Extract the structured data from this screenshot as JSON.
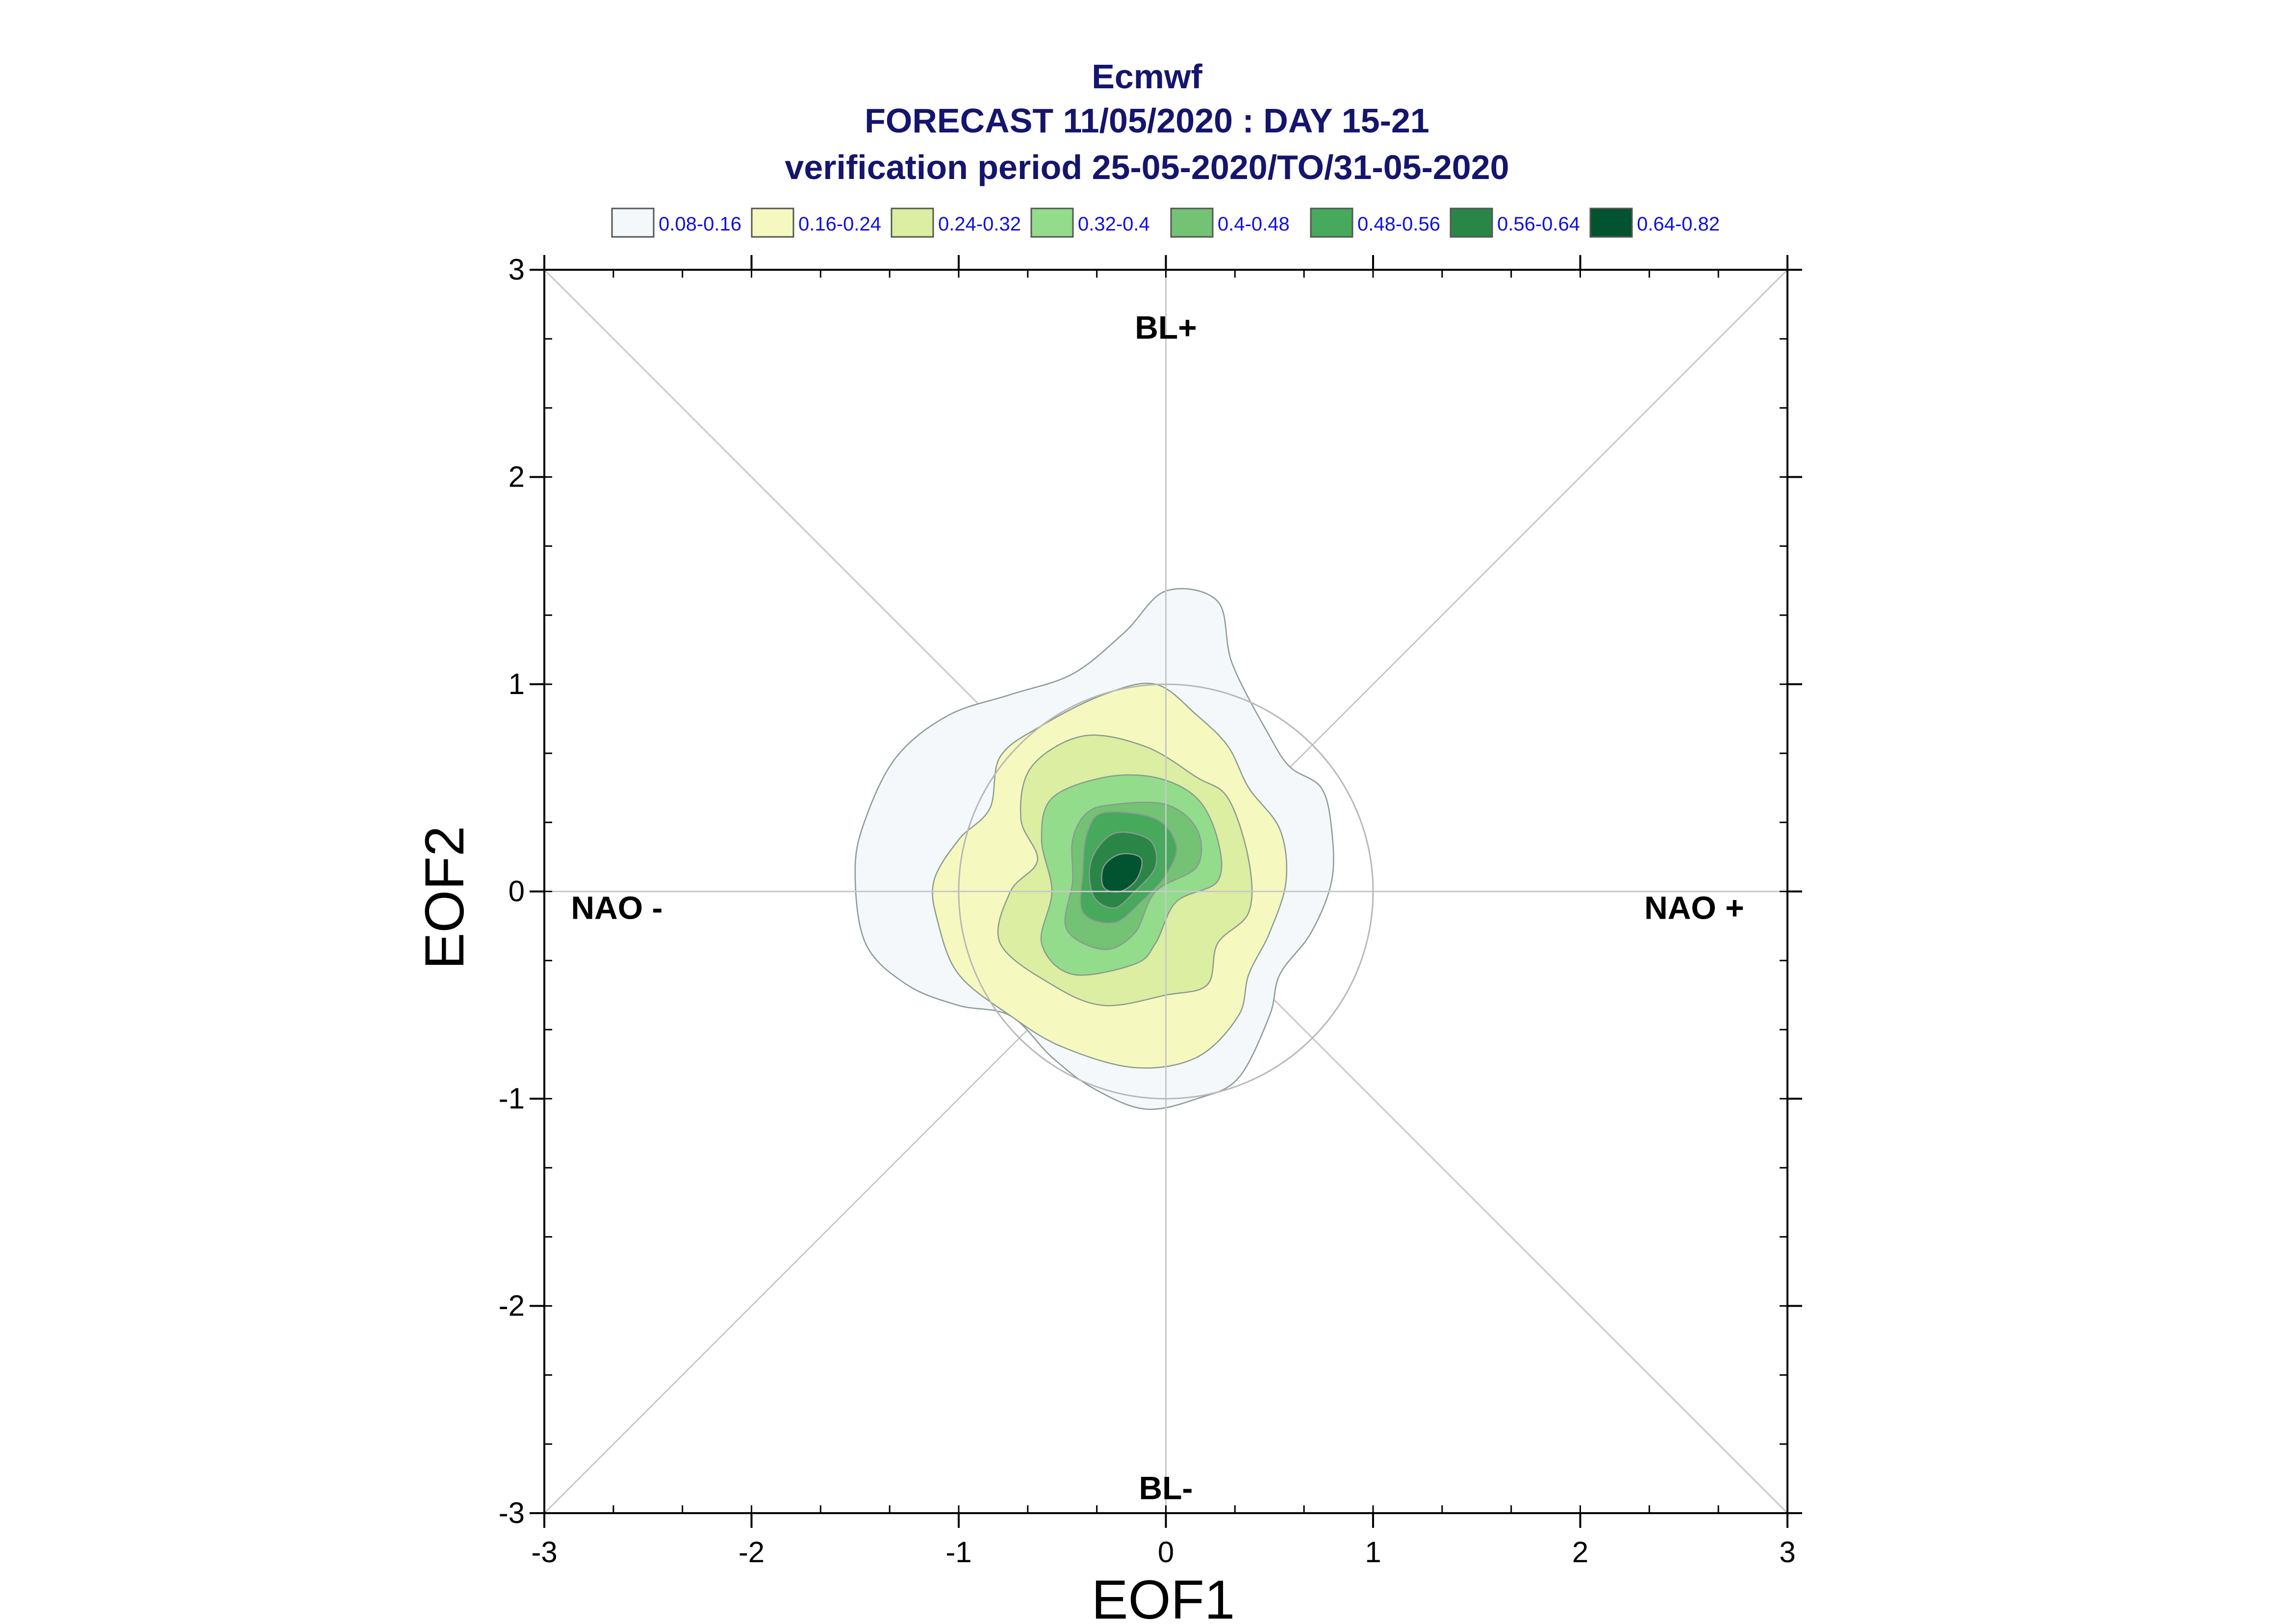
{
  "chart_data": {
    "type": "contour",
    "title_lines": [
      "Ecmwf",
      "FORECAST 11/05/2020 : DAY 15-21",
      "verification period 25-05-2020/TO/31-05-2020"
    ],
    "xlabel": "EOF1",
    "ylabel": "EOF2",
    "xlim": [
      -3,
      3
    ],
    "ylim": [
      -3,
      3
    ],
    "xticks": [
      "-3",
      "-2",
      "-1",
      "0",
      "1",
      "2",
      "3"
    ],
    "yticks": [
      "-3",
      "-2",
      "-1",
      "0",
      "1",
      "2",
      "3"
    ],
    "regimes": [
      {
        "label": "BL+",
        "x": 0,
        "y": 2.72
      },
      {
        "label": "BL-",
        "x": 0,
        "y": -2.88
      },
      {
        "label": "NAO -",
        "x": -2.65,
        "y": -0.08
      },
      {
        "label": "NAO +",
        "x": 2.55,
        "y": -0.08
      }
    ],
    "reference_circle": {
      "center": [
        0,
        0
      ],
      "radius": 1.0
    },
    "legend": [
      {
        "label": "0.08-0.16",
        "color": "#f4f8fb"
      },
      {
        "label": "0.16-0.24",
        "color": "#f5f9bf"
      },
      {
        "label": "0.24-0.32",
        "color": "#dbeea2"
      },
      {
        "label": "0.32-0.4",
        "color": "#92dc8c"
      },
      {
        "label": "0.4-0.48",
        "color": "#74c274"
      },
      {
        "label": "0.48-0.56",
        "color": "#46a95c"
      },
      {
        "label": "0.56-0.64",
        "color": "#2a8646"
      },
      {
        "label": "0.64-0.82",
        "color": "#02532f"
      }
    ],
    "contours": [
      {
        "level": "0.08-0.16",
        "color": "#f4f8fb",
        "points": [
          [
            0.0,
            1.45
          ],
          [
            0.25,
            1.4
          ],
          [
            0.32,
            1.1
          ],
          [
            0.5,
            0.75
          ],
          [
            0.6,
            0.6
          ],
          [
            0.75,
            0.5
          ],
          [
            0.8,
            0.3
          ],
          [
            0.8,
            0.05
          ],
          [
            0.7,
            -0.2
          ],
          [
            0.55,
            -0.4
          ],
          [
            0.5,
            -0.6
          ],
          [
            0.35,
            -0.9
          ],
          [
            0.15,
            -1.0
          ],
          [
            -0.1,
            -1.05
          ],
          [
            -0.35,
            -0.95
          ],
          [
            -0.55,
            -0.8
          ],
          [
            -0.75,
            -0.6
          ],
          [
            -1.0,
            -0.55
          ],
          [
            -1.25,
            -0.45
          ],
          [
            -1.45,
            -0.25
          ],
          [
            -1.5,
            0.1
          ],
          [
            -1.45,
            0.35
          ],
          [
            -1.3,
            0.65
          ],
          [
            -1.05,
            0.85
          ],
          [
            -0.75,
            0.95
          ],
          [
            -0.45,
            1.05
          ],
          [
            -0.2,
            1.25
          ]
        ]
      },
      {
        "level": "0.16-0.24",
        "color": "#f5f9bf",
        "points": [
          [
            -0.05,
            1.0
          ],
          [
            0.15,
            0.85
          ],
          [
            0.3,
            0.7
          ],
          [
            0.4,
            0.5
          ],
          [
            0.55,
            0.3
          ],
          [
            0.58,
            0.05
          ],
          [
            0.5,
            -0.2
          ],
          [
            0.4,
            -0.4
          ],
          [
            0.35,
            -0.6
          ],
          [
            0.15,
            -0.8
          ],
          [
            -0.15,
            -0.85
          ],
          [
            -0.5,
            -0.75
          ],
          [
            -0.75,
            -0.6
          ],
          [
            -1.0,
            -0.4
          ],
          [
            -1.1,
            -0.15
          ],
          [
            -1.12,
            0.05
          ],
          [
            -1.0,
            0.25
          ],
          [
            -0.85,
            0.4
          ],
          [
            -0.8,
            0.65
          ],
          [
            -0.6,
            0.8
          ],
          [
            -0.3,
            0.95
          ]
        ]
      },
      {
        "level": "0.24-0.32",
        "color": "#dbeea2",
        "points": [
          [
            -0.4,
            0.75
          ],
          [
            -0.1,
            0.7
          ],
          [
            0.15,
            0.55
          ],
          [
            0.3,
            0.45
          ],
          [
            0.4,
            0.15
          ],
          [
            0.4,
            -0.1
          ],
          [
            0.25,
            -0.25
          ],
          [
            0.2,
            -0.45
          ],
          [
            0.0,
            -0.5
          ],
          [
            -0.3,
            -0.55
          ],
          [
            -0.55,
            -0.45
          ],
          [
            -0.8,
            -0.25
          ],
          [
            -0.75,
            0.0
          ],
          [
            -0.62,
            0.15
          ],
          [
            -0.7,
            0.35
          ],
          [
            -0.65,
            0.6
          ]
        ]
      },
      {
        "level": "0.32-0.4",
        "color": "#92dc8c",
        "points": [
          [
            -0.3,
            0.55
          ],
          [
            -0.05,
            0.55
          ],
          [
            0.15,
            0.45
          ],
          [
            0.25,
            0.25
          ],
          [
            0.25,
            0.05
          ],
          [
            0.05,
            -0.05
          ],
          [
            -0.05,
            -0.25
          ],
          [
            -0.15,
            -0.35
          ],
          [
            -0.45,
            -0.4
          ],
          [
            -0.6,
            -0.25
          ],
          [
            -0.55,
            0.0
          ],
          [
            -0.6,
            0.25
          ],
          [
            -0.55,
            0.45
          ]
        ]
      },
      {
        "level": "0.4-0.48",
        "color": "#74c274",
        "points": [
          [
            -0.25,
            0.42
          ],
          [
            0.0,
            0.42
          ],
          [
            0.15,
            0.3
          ],
          [
            0.15,
            0.12
          ],
          [
            -0.05,
            0.0
          ],
          [
            -0.15,
            -0.2
          ],
          [
            -0.3,
            -0.28
          ],
          [
            -0.48,
            -0.18
          ],
          [
            -0.45,
            0.05
          ],
          [
            -0.45,
            0.25
          ],
          [
            -0.38,
            0.38
          ]
        ]
      },
      {
        "level": "0.48-0.56",
        "color": "#46a95c",
        "points": [
          [
            -0.3,
            0.38
          ],
          [
            -0.05,
            0.35
          ],
          [
            0.05,
            0.22
          ],
          [
            0.0,
            0.08
          ],
          [
            -0.12,
            -0.05
          ],
          [
            -0.25,
            -0.15
          ],
          [
            -0.4,
            -0.1
          ],
          [
            -0.4,
            0.1
          ],
          [
            -0.38,
            0.28
          ]
        ]
      },
      {
        "level": "0.56-0.64",
        "color": "#2a8646",
        "points": [
          [
            -0.25,
            0.28
          ],
          [
            -0.08,
            0.25
          ],
          [
            -0.05,
            0.12
          ],
          [
            -0.15,
            0.0
          ],
          [
            -0.25,
            -0.08
          ],
          [
            -0.35,
            -0.02
          ],
          [
            -0.36,
            0.15
          ]
        ]
      },
      {
        "level": "0.64-0.82",
        "color": "#02532f",
        "points": [
          [
            -0.22,
            0.18
          ],
          [
            -0.12,
            0.16
          ],
          [
            -0.14,
            0.06
          ],
          [
            -0.22,
            0.0
          ],
          [
            -0.3,
            0.02
          ],
          [
            -0.3,
            0.12
          ]
        ]
      }
    ]
  }
}
